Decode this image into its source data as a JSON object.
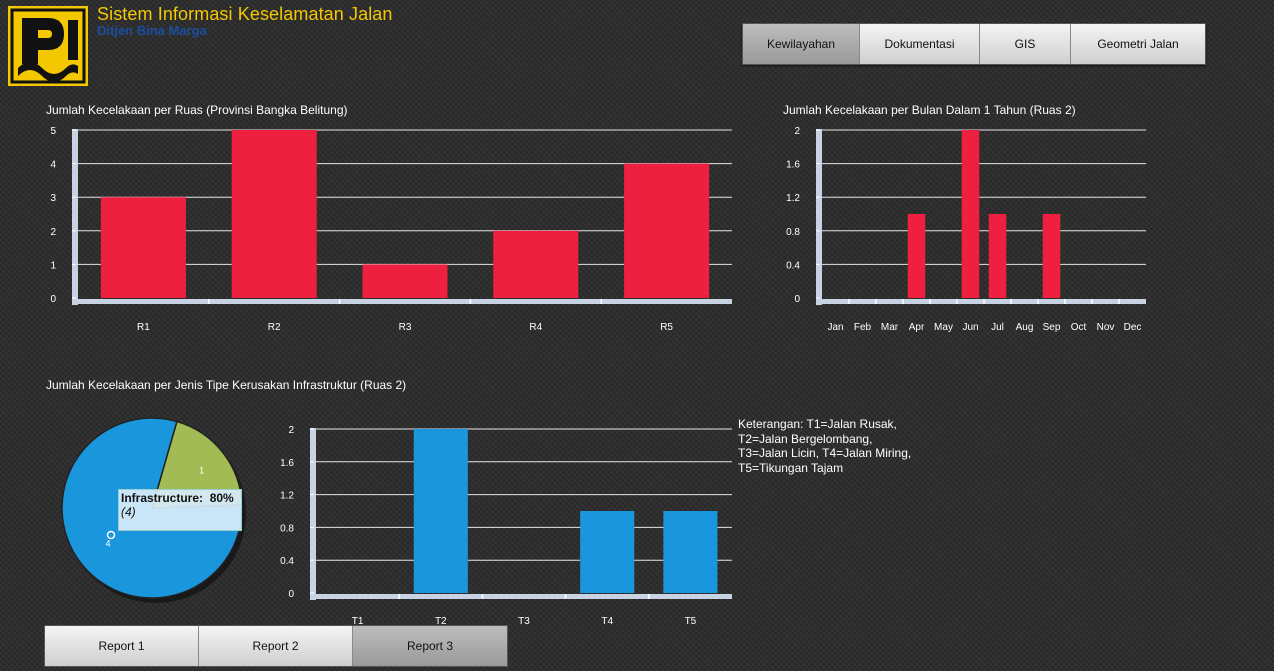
{
  "header": {
    "title": "Sistem Informasi Keselamatan Jalan",
    "subtitle": "Ditjen Bina Marga",
    "logo_icon": "pu-logo-icon"
  },
  "nav": [
    {
      "label": "Kewilayahan",
      "active": true
    },
    {
      "label": "Dokumentasi",
      "active": false
    },
    {
      "label": "GIS",
      "active": false
    },
    {
      "label": "Geometri Jalan",
      "active": false
    }
  ],
  "colors": {
    "red": "#ee2040",
    "blue": "#1a96dc",
    "green": "#a3bb55",
    "accent": "#f3c800"
  },
  "chart_data": [
    {
      "type": "bar",
      "title": "Jumlah Kecelakaan per Ruas (Provinsi Bangka Belitung)",
      "categories": [
        "R1",
        "R2",
        "R3",
        "R4",
        "R5"
      ],
      "values": [
        3,
        5,
        1,
        2,
        4
      ],
      "ylim": [
        0,
        5
      ],
      "yticks": [
        "0",
        "1",
        "2",
        "3",
        "4",
        "5"
      ],
      "grid": true
    },
    {
      "type": "bar",
      "title": "Jumlah Kecelakaan per Bulan Dalam 1 Tahun (Ruas 2)",
      "categories": [
        "Jan",
        "Feb",
        "Mar",
        "Apr",
        "May",
        "Jun",
        "Jul",
        "Aug",
        "Sep",
        "Oct",
        "Nov",
        "Dec"
      ],
      "values": [
        0,
        0,
        0,
        1,
        0,
        2,
        1,
        0,
        1,
        0,
        0,
        0
      ],
      "ylim": [
        0,
        2
      ],
      "yticks": [
        "0",
        "0.4",
        "0.8",
        "1.2",
        "1.6",
        "2"
      ],
      "grid": true
    },
    {
      "type": "pie",
      "title": "Jumlah Kecelakaan per Jenis Tipe Kerusakan Infrastruktur (Ruas 2)",
      "slices": [
        {
          "label": "4",
          "value": 4,
          "name": "Infrastructure",
          "percent": "80%"
        },
        {
          "label": "1",
          "value": 1
        }
      ],
      "tooltip": {
        "name": "Infrastructure:",
        "percent": "80%",
        "count": "(4)"
      }
    },
    {
      "type": "bar",
      "categories": [
        "T1",
        "T2",
        "T3",
        "T4",
        "T5"
      ],
      "values": [
        0,
        2,
        0,
        1,
        1
      ],
      "ylim": [
        0,
        2
      ],
      "yticks": [
        "0",
        "0.4",
        "0.8",
        "1.2",
        "1.6",
        "2"
      ],
      "grid": true
    }
  ],
  "legend_note": [
    "Keterangan: T1=Jalan Rusak,",
    "T2=Jalan Bergelombang,",
    "T3=Jalan Licin, T4=Jalan Miring,",
    "T5=Tikungan Tajam"
  ],
  "reports": [
    {
      "label": "Report 1",
      "active": false
    },
    {
      "label": "Report 2",
      "active": false
    },
    {
      "label": "Report 3",
      "active": true
    }
  ]
}
